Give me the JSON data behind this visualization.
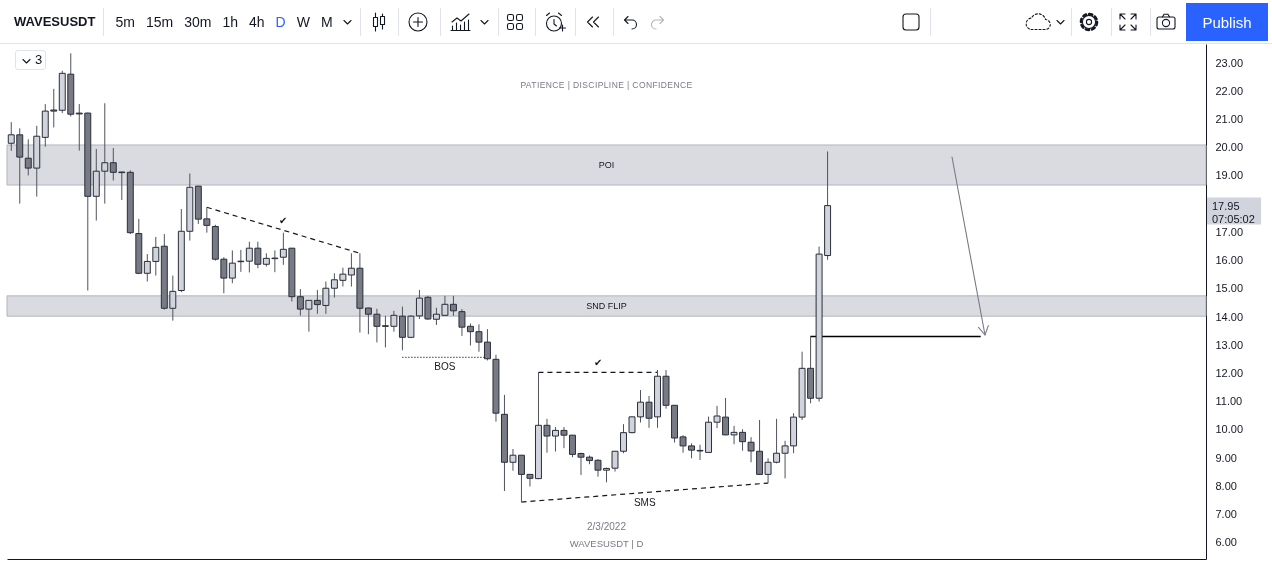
{
  "chart_data": {
    "type": "candlestick",
    "title": "WAVESUSDT",
    "subtitle": "PATIENCE | DISCIPLINE | CONFIDENCE",
    "categories": [
      null,
      null,
      null,
      null,
      null,
      null,
      null,
      null,
      null,
      null,
      null,
      null,
      null,
      null,
      null,
      null,
      null,
      null,
      null,
      null,
      null,
      null,
      null,
      null,
      null,
      null,
      null,
      null,
      null,
      null,
      null,
      null,
      null,
      null,
      null,
      null,
      null,
      null,
      null,
      null,
      null,
      null,
      null,
      null,
      null,
      null,
      null,
      null,
      null,
      null,
      null,
      null,
      null,
      null,
      null,
      null,
      null,
      null,
      null,
      null,
      null,
      null,
      null,
      null,
      null,
      null,
      null,
      null,
      null,
      null,
      null,
      null,
      null,
      null,
      null,
      null,
      null,
      null,
      null,
      null,
      null,
      null,
      null,
      null,
      null,
      null,
      null,
      null,
      null,
      null,
      null,
      null,
      null,
      null,
      null,
      null,
      null,
      null,
      null,
      null,
      null,
      null,
      null,
      null,
      null,
      null,
      null,
      null,
      null,
      null,
      null,
      null,
      null,
      null,
      null,
      null,
      null,
      null,
      null,
      null,
      null,
      null,
      null,
      null,
      null,
      null,
      null,
      null,
      null,
      null,
      null,
      null,
      null,
      null,
      null,
      null,
      null,
      null,
      null,
      null,
      null
    ],
    "ohlc": [
      [
        20.16,
        20.91,
        19.89,
        20.46
      ],
      [
        20.46,
        20.69,
        18.02,
        19.67
      ],
      [
        19.63,
        20.3,
        19.02,
        19.28
      ],
      [
        19.28,
        20.78,
        18.27,
        20.41
      ],
      [
        20.37,
        21.55,
        20.04,
        21.3
      ],
      [
        21.34,
        22.09,
        20.72,
        21.3
      ],
      [
        21.33,
        22.73,
        21.23,
        22.64
      ],
      [
        22.61,
        23.35,
        21.11,
        21.19
      ],
      [
        21.23,
        21.55,
        19.9,
        21.2
      ],
      [
        21.23,
        21.25,
        14.94,
        18.28
      ],
      [
        18.28,
        19.96,
        17.42,
        19.17
      ],
      [
        19.17,
        21.58,
        18.02,
        19.47
      ],
      [
        19.47,
        19.99,
        18.84,
        19.13
      ],
      [
        19.14,
        19.15,
        18.15,
        19.12
      ],
      [
        19.13,
        19.2,
        16.94,
        16.99
      ],
      [
        16.96,
        17.48,
        15.52,
        15.55
      ],
      [
        15.55,
        16.23,
        15.26,
        15.97
      ],
      [
        15.97,
        16.84,
        15.47,
        16.47
      ],
      [
        16.51,
        16.94,
        14.26,
        14.31
      ],
      [
        14.31,
        15.47,
        13.87,
        14.91
      ],
      [
        14.94,
        17.83,
        14.88,
        17.04
      ],
      [
        17.04,
        19.09,
        16.71,
        18.6
      ],
      [
        18.64,
        18.65,
        17.3,
        17.47
      ],
      [
        17.48,
        17.89,
        16.99,
        17.25
      ],
      [
        17.21,
        17.27,
        16.0,
        16.05
      ],
      [
        16.05,
        16.12,
        14.84,
        15.38
      ],
      [
        15.38,
        16.36,
        15.2,
        15.91
      ],
      [
        15.98,
        16.38,
        15.6,
        15.96
      ],
      [
        15.98,
        16.67,
        15.58,
        16.44
      ],
      [
        16.44,
        16.67,
        15.73,
        15.87
      ],
      [
        15.87,
        16.26,
        15.79,
        16.08
      ],
      [
        16.07,
        16.36,
        15.59,
        16.09
      ],
      [
        16.12,
        16.99,
        15.85,
        16.4
      ],
      [
        16.44,
        16.45,
        14.55,
        14.72
      ],
      [
        14.72,
        14.99,
        14.05,
        14.28
      ],
      [
        14.28,
        14.6,
        13.48,
        14.59
      ],
      [
        14.59,
        14.96,
        14.11,
        14.44
      ],
      [
        14.41,
        15.26,
        14.11,
        15.02
      ],
      [
        15.02,
        15.55,
        14.69,
        15.32
      ],
      [
        15.3,
        15.75,
        15.08,
        15.52
      ],
      [
        15.49,
        16.26,
        15.08,
        15.73
      ],
      [
        15.73,
        16.26,
        13.45,
        14.31
      ],
      [
        14.32,
        14.33,
        13.39,
        14.1
      ],
      [
        14.1,
        14.29,
        13.1,
        13.67
      ],
      [
        13.69,
        14.04,
        12.92,
        13.67
      ],
      [
        13.67,
        14.22,
        13.48,
        14.06
      ],
      [
        14.03,
        14.37,
        12.82,
        13.28
      ],
      [
        13.28,
        14.06,
        13.25,
        14.03
      ],
      [
        14.04,
        14.96,
        13.93,
        14.67
      ],
      [
        14.7,
        14.75,
        13.9,
        13.93
      ],
      [
        13.92,
        14.33,
        13.72,
        14.1
      ],
      [
        14.06,
        14.75,
        14.04,
        14.45
      ],
      [
        14.45,
        14.75,
        14.04,
        14.22
      ],
      [
        14.19,
        14.28,
        13.33,
        13.64
      ],
      [
        13.67,
        13.77,
        12.99,
        13.48
      ],
      [
        13.48,
        13.74,
        12.77,
        13.11
      ],
      [
        13.11,
        13.57,
        12.46,
        12.52
      ],
      [
        12.5,
        12.66,
        10.29,
        10.59
      ],
      [
        10.55,
        11.24,
        7.83,
        8.85
      ],
      [
        8.85,
        9.32,
        8.55,
        9.1
      ],
      [
        9.1,
        9.1,
        7.44,
        8.42
      ],
      [
        8.42,
        8.43,
        7.99,
        8.28
      ],
      [
        8.27,
        12.04,
        8.25,
        10.16
      ],
      [
        10.16,
        10.39,
        9.19,
        9.78
      ],
      [
        9.78,
        10.1,
        9.23,
        9.98
      ],
      [
        9.98,
        10.1,
        9.35,
        9.81
      ],
      [
        9.81,
        9.82,
        9.03,
        9.13
      ],
      [
        9.16,
        9.19,
        8.4,
        9.03
      ],
      [
        9.03,
        9.09,
        8.78,
        8.91
      ],
      [
        8.92,
        8.96,
        8.34,
        8.57
      ],
      [
        8.57,
        8.66,
        8.14,
        8.63
      ],
      [
        8.64,
        9.25,
        8.52,
        9.24
      ],
      [
        9.24,
        10.2,
        9.17,
        9.9
      ],
      [
        9.9,
        10.47,
        9.88,
        10.46
      ],
      [
        10.46,
        11.41,
        10.26,
        10.98
      ],
      [
        10.98,
        11.2,
        10.07,
        10.41
      ],
      [
        10.46,
        12.12,
        10.07,
        11.9
      ],
      [
        11.9,
        12.12,
        10.75,
        10.87
      ],
      [
        10.87,
        10.88,
        9.55,
        9.71
      ],
      [
        9.75,
        9.81,
        9.19,
        9.43
      ],
      [
        9.43,
        9.52,
        8.99,
        9.28
      ],
      [
        9.27,
        9.47,
        8.93,
        9.25
      ],
      [
        9.2,
        10.47,
        9.19,
        10.27
      ],
      [
        10.27,
        10.85,
        10.06,
        10.49
      ],
      [
        10.45,
        11.13,
        9.81,
        9.82
      ],
      [
        9.82,
        10.14,
        9.49,
        9.91
      ],
      [
        9.91,
        10.02,
        9.26,
        9.58
      ],
      [
        9.56,
        9.74,
        8.85,
        9.25
      ],
      [
        9.24,
        10.35,
        8.4,
        8.42
      ],
      [
        8.42,
        8.99,
        8.11,
        8.85
      ],
      [
        8.85,
        10.39,
        8.81,
        9.17
      ],
      [
        9.17,
        9.61,
        8.28,
        9.43
      ],
      [
        9.43,
        10.59,
        9.17,
        10.45
      ],
      [
        10.45,
        12.77,
        10.35,
        12.18
      ],
      [
        12.18,
        13.33,
        10.94,
        11.12
      ],
      [
        11.12,
        16.5,
        11.0,
        16.23
      ],
      [
        16.18,
        19.87,
        16.03,
        17.95
      ],
      null,
      null,
      null,
      null,
      null,
      null,
      null,
      null,
      null,
      null,
      null,
      null,
      null,
      null,
      null,
      null,
      null,
      null,
      null,
      null,
      null,
      null,
      null,
      null,
      null,
      null,
      null,
      null,
      null,
      null,
      null,
      null,
      null,
      null,
      null,
      null,
      null,
      null,
      null,
      null,
      null,
      null,
      null,
      null
    ],
    "colors": [
      "#d1d4dc",
      "#787b86",
      "#787b86",
      "#d1d4dc",
      "#d1d4dc",
      "#787b86",
      "#d1d4dc",
      "#787b86",
      "#787b86",
      "#787b86",
      "#d1d4dc",
      "#d1d4dc",
      "#787b86",
      "#787b86",
      "#787b86",
      "#787b86",
      "#d1d4dc",
      "#d1d4dc",
      "#787b86",
      "#d1d4dc",
      "#d1d4dc",
      "#d1d4dc",
      "#787b86",
      "#787b86",
      "#787b86",
      "#787b86",
      "#d1d4dc",
      "#787b86",
      "#d1d4dc",
      "#787b86",
      "#d1d4dc",
      "#d1d4dc",
      "#d1d4dc",
      "#787b86",
      "#787b86",
      "#d1d4dc",
      "#787b86",
      "#d1d4dc",
      "#d1d4dc",
      "#d1d4dc",
      "#d1d4dc",
      "#787b86",
      "#787b86",
      "#787b86",
      "#787b86",
      "#d1d4dc",
      "#787b86",
      "#d1d4dc",
      "#d1d4dc",
      "#787b86",
      "#d1d4dc",
      "#d1d4dc",
      "#787b86",
      "#787b86",
      "#787b86",
      "#787b86",
      "#787b86",
      "#787b86",
      "#787b86",
      "#d1d4dc",
      "#787b86",
      "#787b86",
      "#d1d4dc",
      "#787b86",
      "#d1d4dc",
      "#787b86",
      "#787b86",
      "#787b86",
      "#787b86",
      "#787b86",
      "#d1d4dc",
      "#d1d4dc",
      "#d1d4dc",
      "#d1d4dc",
      "#d1d4dc",
      "#787b86",
      "#d1d4dc",
      "#787b86",
      "#787b86",
      "#787b86",
      "#787b86",
      "#787b86",
      "#d1d4dc",
      "#d1d4dc",
      "#787b86",
      "#d1d4dc",
      "#787b86",
      "#787b86",
      "#787b86",
      "#d1d4dc",
      "#d1d4dc",
      "#d1d4dc",
      "#d1d4dc",
      "#d1d4dc",
      "#787b86",
      "#d1d4dc",
      "#d1d4dc",
      null,
      null,
      null,
      null,
      null,
      null,
      null,
      null,
      null,
      null,
      null,
      null,
      null,
      null,
      null,
      null,
      null,
      null,
      null,
      null,
      null,
      null,
      null,
      null,
      null,
      null,
      null,
      null,
      null,
      null,
      null,
      null,
      null,
      null,
      null,
      null,
      null,
      null,
      null,
      null,
      null,
      null,
      null,
      null
    ],
    "series": [
      {
        "type": "line",
        "name": "✔",
        "color": "#131722",
        "line_style": "dashed",
        "values": [
          null,
          null,
          null,
          null,
          null,
          null,
          null,
          null,
          null,
          null,
          null,
          null,
          null,
          null,
          null,
          null,
          null,
          null,
          null,
          null,
          null,
          null,
          null,
          17.89,
          null,
          null,
          null,
          null,
          null,
          null,
          null,
          null,
          null,
          null,
          null,
          null,
          null,
          null,
          null,
          null,
          null,
          16.26,
          null,
          null,
          null,
          null,
          null,
          null,
          null,
          null,
          null,
          null,
          null,
          null,
          null,
          null,
          null,
          null,
          null,
          null,
          null,
          null,
          null,
          null,
          null,
          null,
          null,
          null,
          null,
          null,
          null,
          null,
          null,
          null,
          null,
          null,
          null,
          null,
          null,
          null,
          null,
          null,
          null,
          null,
          null,
          null,
          null,
          null,
          null,
          null,
          null,
          null,
          null,
          null,
          null,
          null,
          null,
          null,
          null,
          null,
          null,
          null,
          null,
          null,
          null,
          null,
          null,
          null,
          null,
          null,
          null,
          null,
          null,
          null,
          null,
          null,
          null,
          null,
          null,
          null,
          null,
          null,
          null,
          null,
          null,
          null,
          null,
          null,
          null,
          null,
          null,
          null,
          null,
          null,
          null,
          null,
          null,
          null,
          null,
          null,
          null
        ]
      },
      {
        "type": "line",
        "name": "BOS",
        "color": "#131722",
        "line_style": "dotted",
        "values": [
          null,
          null,
          null,
          null,
          null,
          null,
          null,
          null,
          null,
          null,
          null,
          null,
          null,
          null,
          null,
          null,
          null,
          null,
          null,
          null,
          null,
          null,
          null,
          null,
          null,
          null,
          null,
          null,
          null,
          null,
          null,
          null,
          null,
          null,
          null,
          null,
          null,
          null,
          null,
          null,
          null,
          null,
          null,
          null,
          null,
          null,
          12.57,
          null,
          null,
          null,
          null,
          null,
          null,
          null,
          null,
          null,
          12.57,
          null,
          null,
          null,
          null,
          null,
          null,
          null,
          null,
          null,
          null,
          null,
          null,
          null,
          null,
          null,
          null,
          null,
          null,
          null,
          null,
          null,
          null,
          null,
          null,
          null,
          null,
          null,
          null,
          null,
          null,
          null,
          null,
          null,
          null,
          null,
          null,
          null,
          null,
          null,
          null,
          null,
          null,
          null,
          null,
          null,
          null,
          null,
          null,
          null,
          null,
          null,
          null,
          null,
          null,
          null,
          null,
          null,
          null,
          null,
          null,
          null,
          null,
          null,
          null,
          null,
          null,
          null,
          null,
          null,
          null,
          null,
          null,
          null,
          null,
          null,
          null,
          null,
          null,
          null,
          null,
          null,
          null,
          null,
          null
        ]
      },
      {
        "type": "line",
        "name": "✔",
        "color": "#131722",
        "line_style": "dashed",
        "values": [
          null,
          null,
          null,
          null,
          null,
          null,
          null,
          null,
          null,
          null,
          null,
          null,
          null,
          null,
          null,
          null,
          null,
          null,
          null,
          null,
          null,
          null,
          null,
          null,
          null,
          null,
          null,
          null,
          null,
          null,
          null,
          null,
          null,
          null,
          null,
          null,
          null,
          null,
          null,
          null,
          null,
          null,
          null,
          null,
          null,
          null,
          null,
          null,
          null,
          null,
          null,
          null,
          null,
          null,
          null,
          null,
          null,
          null,
          null,
          null,
          null,
          null,
          12.04,
          null,
          null,
          null,
          null,
          null,
          null,
          null,
          null,
          null,
          null,
          null,
          null,
          null,
          12.04,
          null,
          null,
          null,
          null,
          null,
          null,
          null,
          null,
          null,
          null,
          null,
          null,
          null,
          null,
          null,
          null,
          null,
          null,
          null,
          null,
          null,
          null,
          null,
          null,
          null,
          null,
          null,
          null,
          null,
          null,
          null,
          null,
          null,
          null,
          null,
          null,
          null,
          null,
          null,
          null,
          null,
          null,
          null,
          null,
          null,
          null,
          null,
          null,
          null,
          null,
          null,
          null,
          null,
          null,
          null,
          null,
          null,
          null,
          null,
          null,
          null,
          null,
          null,
          null
        ]
      },
      {
        "type": "line",
        "name": "SMS",
        "color": "#131722",
        "line_style": "dashed",
        "values": [
          null,
          null,
          null,
          null,
          null,
          null,
          null,
          null,
          null,
          null,
          null,
          null,
          null,
          null,
          null,
          null,
          null,
          null,
          null,
          null,
          null,
          null,
          null,
          null,
          null,
          null,
          null,
          null,
          null,
          null,
          null,
          null,
          null,
          null,
          null,
          null,
          null,
          null,
          null,
          null,
          null,
          null,
          null,
          null,
          null,
          null,
          null,
          null,
          null,
          null,
          null,
          null,
          null,
          null,
          null,
          null,
          null,
          null,
          null,
          null,
          7.44,
          null,
          null,
          null,
          null,
          null,
          null,
          null,
          null,
          null,
          null,
          null,
          null,
          null,
          null,
          null,
          null,
          null,
          null,
          null,
          null,
          null,
          null,
          null,
          null,
          null,
          null,
          null,
          null,
          8.11,
          null,
          null,
          null,
          null,
          null,
          null,
          null,
          null,
          null,
          null,
          null,
          null,
          null,
          null,
          null,
          null,
          null,
          null,
          null,
          null,
          null,
          null,
          null,
          null,
          null,
          null,
          null,
          null,
          null,
          null,
          null,
          null,
          null,
          null,
          null,
          null,
          null,
          null,
          null,
          null,
          null,
          null,
          null,
          null,
          null,
          null,
          null,
          null,
          null,
          null,
          null
        ]
      },
      {
        "type": "line",
        "color": "#000000",
        "line_style": "solid",
        "values": [
          null,
          null,
          null,
          null,
          null,
          null,
          null,
          null,
          null,
          null,
          null,
          null,
          null,
          null,
          null,
          null,
          null,
          null,
          null,
          null,
          null,
          null,
          null,
          null,
          null,
          null,
          null,
          null,
          null,
          null,
          null,
          null,
          null,
          null,
          null,
          null,
          null,
          null,
          null,
          null,
          null,
          null,
          null,
          null,
          null,
          null,
          null,
          null,
          null,
          null,
          null,
          null,
          null,
          null,
          null,
          null,
          null,
          null,
          null,
          null,
          null,
          null,
          null,
          null,
          null,
          null,
          null,
          null,
          null,
          null,
          null,
          null,
          null,
          null,
          null,
          null,
          null,
          null,
          null,
          null,
          null,
          null,
          null,
          null,
          null,
          null,
          null,
          null,
          null,
          null,
          null,
          null,
          null,
          null,
          13.31,
          null,
          null,
          null,
          null,
          null,
          null,
          null,
          null,
          null,
          null,
          null,
          null,
          null,
          null,
          null,
          null,
          null,
          null,
          null,
          13.31,
          null,
          null,
          null,
          null,
          null,
          null,
          null,
          null,
          null,
          null,
          null,
          null,
          null,
          null,
          null,
          null,
          null,
          null,
          null,
          null,
          null,
          null,
          null,
          null,
          null,
          null
        ]
      }
    ],
    "bands": [
      {
        "axis": "y",
        "from": 18.68,
        "to": 20.1,
        "label": "POI",
        "color": "#dadbe0"
      },
      {
        "axis": "y",
        "from": 14.03,
        "to": 14.75,
        "label": "SND FLIP",
        "color": "#dadbe0"
      }
    ],
    "ylim": [
      5.42,
      23.68
    ],
    "yticks": [
      {
        "value": 6,
        "label": "6.00"
      },
      {
        "value": 7,
        "label": "7.00"
      },
      {
        "value": 8,
        "label": "8.00"
      },
      {
        "value": 9,
        "label": "9.00"
      },
      {
        "value": 10,
        "label": "10.00"
      },
      {
        "value": 11,
        "label": "11.00"
      },
      {
        "value": 12,
        "label": "12.00"
      },
      {
        "value": 13,
        "label": "13.00"
      },
      {
        "value": 14,
        "label": "14.00"
      },
      {
        "value": 15,
        "label": "15.00"
      },
      {
        "value": 16,
        "label": "16.00"
      },
      {
        "value": 17,
        "label": "17.00"
      },
      {
        "value": 19,
        "label": "19.00"
      },
      {
        "value": 20,
        "label": "20.00"
      },
      {
        "value": 21,
        "label": "21.00"
      },
      {
        "value": 22,
        "label": "22.00"
      },
      {
        "value": 23,
        "label": "23.00"
      }
    ],
    "tick_labels": "y",
    "annotations": [
      "17.95\n07:05:02",
      "2/3/2022",
      "WAVESUSDT | D",
      "3",
      "5m",
      "15m",
      "30m",
      "1h",
      "4h",
      "D",
      "W",
      "M",
      "Publish"
    ]
  }
}
